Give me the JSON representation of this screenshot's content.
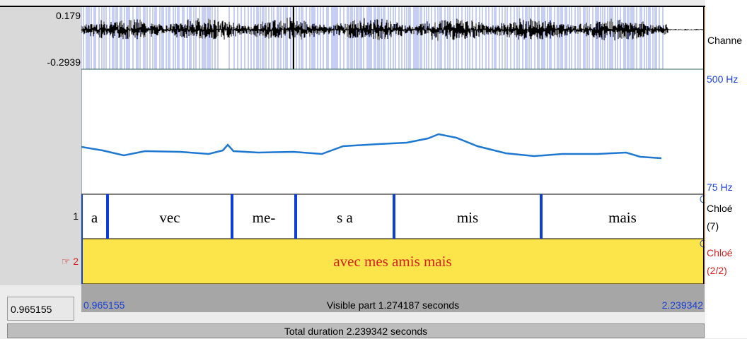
{
  "waveform": {
    "max": "0.179",
    "min": "-0.2939",
    "channel_label": "Channe"
  },
  "pitch": {
    "top": "500 Hz",
    "bottom": "75 Hz"
  },
  "tiers": [
    {
      "number": "1",
      "name": "Chloé",
      "count": "(7)",
      "intervals": [
        "a",
        "vec",
        "me-",
        "s a",
        "mis",
        "mais"
      ]
    },
    {
      "number": "☞ 2",
      "name": "Chloé",
      "count": "(2/2)",
      "intervals": [
        "avec mes amis mais"
      ]
    }
  ],
  "visible": {
    "start": "0.965155",
    "label": "Visible part 1.274187 seconds",
    "end": "2.239342"
  },
  "cursor": "0.965155",
  "total": "Total duration 2.239342 seconds"
}
